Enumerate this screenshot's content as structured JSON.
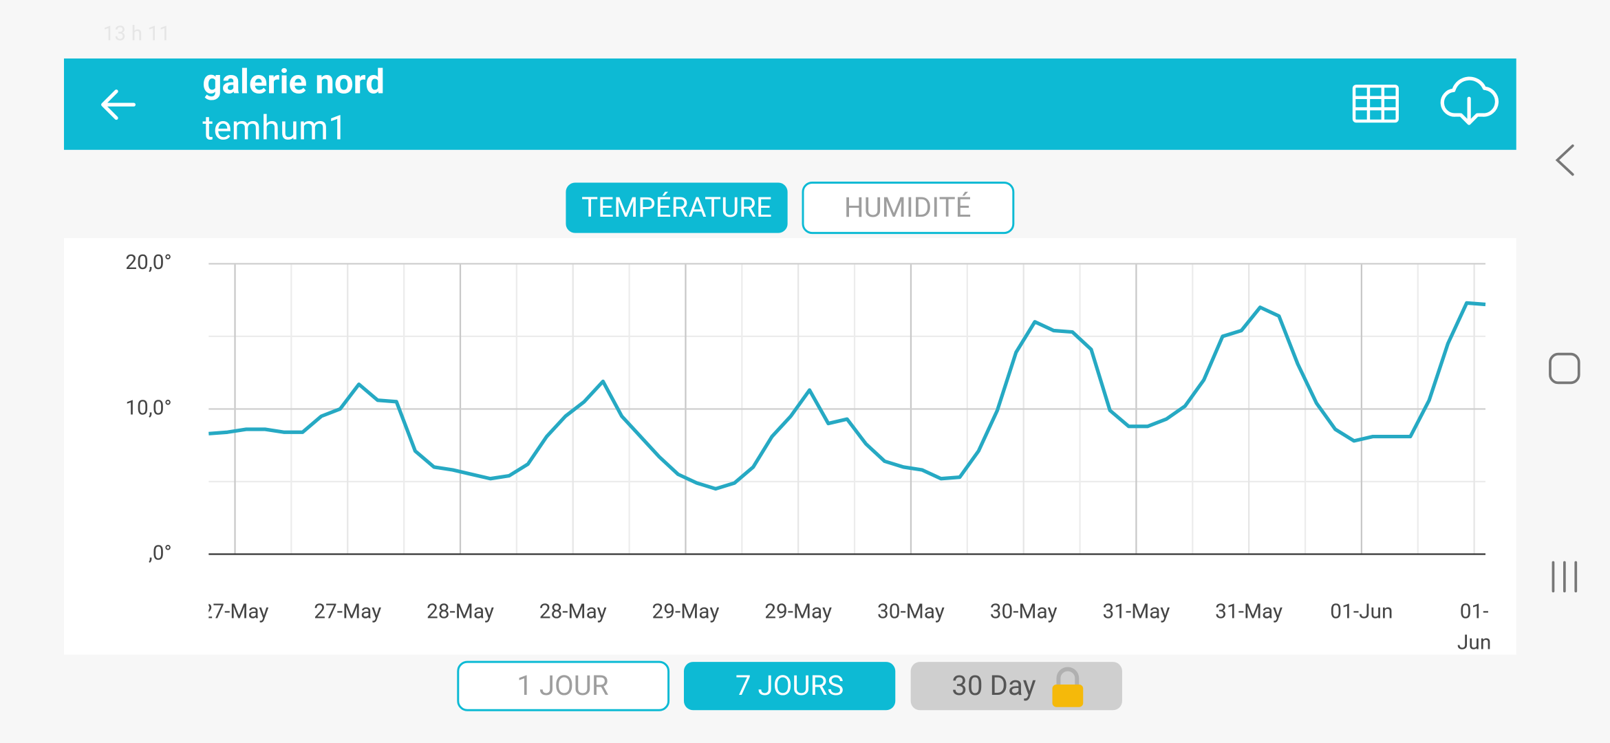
{
  "status_bar": {
    "time": "13 h 11"
  },
  "header": {
    "title": "galerie nord",
    "subtitle": "temhum1"
  },
  "tabs": [
    "TEMPÉRATURE",
    "HUMIDITÉ"
  ],
  "chart_data": {
    "type": "line",
    "x": [
      0,
      1,
      2,
      3,
      4,
      5,
      6,
      7,
      8,
      9,
      10,
      11,
      12,
      13,
      14,
      15,
      16,
      17,
      18,
      19,
      20,
      21,
      22,
      23,
      24,
      25,
      26,
      27,
      28,
      29,
      30,
      31,
      32,
      33,
      34,
      35,
      36,
      37,
      38,
      39,
      40,
      41,
      42,
      43,
      44,
      45,
      46,
      47,
      48,
      49,
      50,
      51,
      52,
      53,
      54,
      55,
      56,
      57,
      58,
      59,
      60,
      61,
      62,
      63,
      64,
      65,
      66,
      67,
      68
    ],
    "series": [
      {
        "color": "#26a9c3",
        "values": [
          8.3,
          8.4,
          8.6,
          8.6,
          8.4,
          8.4,
          9.5,
          10.0,
          11.7,
          10.6,
          10.5,
          7.1,
          6.0,
          5.8,
          5.5,
          5.2,
          5.4,
          6.2,
          8.1,
          9.5,
          10.5,
          11.9,
          9.5,
          8.1,
          6.7,
          5.5,
          4.9,
          4.5,
          4.9,
          6.0,
          8.1,
          9.5,
          11.3,
          9.0,
          9.3,
          7.6,
          6.4,
          6.0,
          5.8,
          5.2,
          5.3,
          7.1,
          9.9,
          13.9,
          16.0,
          15.4,
          15.3,
          14.1,
          9.9,
          8.8,
          8.8,
          9.3,
          10.2,
          12.0,
          15.0,
          15.4,
          17.0,
          16.4,
          13.1,
          10.4,
          8.6,
          7.8,
          8.1,
          8.1,
          8.1,
          10.6,
          14.5,
          17.3,
          17.2
        ]
      }
    ],
    "xlim": [
      0,
      68
    ],
    "xticks": [
      {
        "value": 1.4,
        "label": "27-May"
      },
      {
        "value": 7.4,
        "label": "27-May"
      },
      {
        "value": 13.4,
        "label": "28-May"
      },
      {
        "value": 19.4,
        "label": "28-May"
      },
      {
        "value": 25.4,
        "label": "29-May"
      },
      {
        "value": 31.4,
        "label": "29-May"
      },
      {
        "value": 37.4,
        "label": "30-May"
      },
      {
        "value": 43.4,
        "label": "30-May"
      },
      {
        "value": 49.4,
        "label": "31-May"
      },
      {
        "value": 55.4,
        "label": "31-May"
      },
      {
        "value": 61.4,
        "label": "01-Jun"
      },
      {
        "value": 67.4,
        "label": "01-Jun"
      }
    ],
    "xgrid_minor": [
      4.4,
      10.4,
      16.4,
      22.4,
      28.4,
      34.4,
      40.4,
      46.4,
      52.4,
      58.4,
      64.4
    ],
    "ylim": [
      0,
      20
    ],
    "yticks": [
      {
        "value": 0,
        "label": ",0°"
      },
      {
        "value": 10,
        "label": "10,0°"
      },
      {
        "value": 20,
        "label": "20,0°"
      }
    ],
    "ygrid_minor": [
      5,
      15
    ],
    "grid": true
  },
  "range_buttons": [
    "1 JOUR",
    "7 JOURS",
    "30 Day"
  ]
}
